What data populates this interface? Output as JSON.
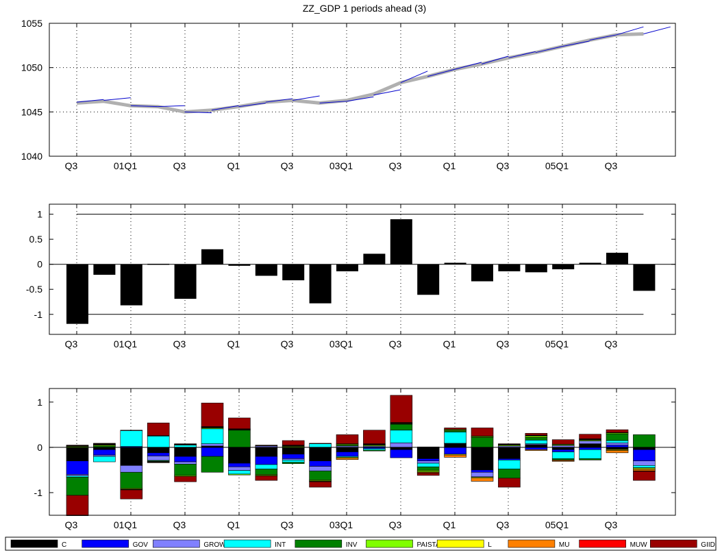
{
  "title": "ZZ_GDP 1 periods ahead (3)",
  "x_tick_labels": [
    "Q3",
    "01Q1",
    "Q3",
    "Q1",
    "Q3",
    "03Q1",
    "Q3",
    "Q1",
    "Q3",
    "05Q1",
    "Q3"
  ],
  "chart_data": [
    {
      "type": "line",
      "title": "ZZ_GDP 1 periods ahead (3)",
      "ylim": [
        1040,
        1055
      ],
      "yticks": [
        1040,
        1045,
        1050,
        1055
      ],
      "grid": true,
      "n_periods": 22,
      "series": [
        {
          "color": "#b0b0b0",
          "values": [
            1046.0,
            1046.2,
            1045.7,
            1045.6,
            1045.0,
            1045.2,
            1045.6,
            1046.1,
            1046.3,
            1046.0,
            1046.3,
            1047.0,
            1048.3,
            1049.0,
            1049.8,
            1050.4,
            1051.1,
            1051.7,
            1052.4,
            1053.1,
            1053.7,
            1053.8
          ]
        }
      ],
      "forecast_segments": {
        "color": "#0000cc",
        "segments": [
          [
            1046.1,
            1046.4
          ],
          [
            1046.3,
            1046.6
          ],
          [
            1045.7,
            1045.6
          ],
          [
            1045.6,
            1045.7
          ],
          [
            1045.0,
            1044.9
          ],
          [
            1045.2,
            1045.7
          ],
          [
            1045.6,
            1046.0
          ],
          [
            1046.1,
            1046.5
          ],
          [
            1046.3,
            1046.8
          ],
          [
            1046.0,
            1046.2
          ],
          [
            1046.2,
            1046.7
          ],
          [
            1046.9,
            1047.5
          ],
          [
            1048.3,
            1049.6
          ],
          [
            1049.0,
            1049.8
          ],
          [
            1049.8,
            1050.6
          ],
          [
            1050.4,
            1051.3
          ],
          [
            1051.1,
            1051.8
          ],
          [
            1051.7,
            1052.4
          ],
          [
            1052.4,
            1053.0
          ],
          [
            1053.1,
            1053.7
          ],
          [
            1053.7,
            1054.6
          ],
          [
            1053.8,
            1054.6
          ]
        ]
      }
    },
    {
      "type": "bar",
      "ylim": [
        -1.4,
        1.2
      ],
      "yticks": [
        -1,
        -0.5,
        0,
        0.5,
        1
      ],
      "reference_lines": [
        1,
        -1
      ],
      "bar_color": "#000000",
      "values": [
        -1.19,
        -0.21,
        -0.82,
        0.01,
        -0.69,
        0.3,
        -0.03,
        -0.23,
        -0.32,
        -0.78,
        -0.14,
        0.21,
        0.9,
        -0.61,
        0.03,
        -0.34,
        -0.14,
        -0.16,
        -0.1,
        0.03,
        0.23,
        -0.53
      ]
    },
    {
      "type": "bar",
      "stacked": true,
      "ylim": [
        -1.5,
        1.3
      ],
      "yticks": [
        -1,
        0,
        1
      ],
      "series": [
        {
          "name": "C",
          "color": "#000000",
          "values": [
            -0.3,
            -0.05,
            -0.4,
            -0.12,
            -0.2,
            0.03,
            -0.35,
            -0.2,
            -0.15,
            -0.3,
            -0.1,
            0.01,
            -0.05,
            -0.25,
            0.08,
            -0.5,
            -0.25,
            0.06,
            -0.05,
            0.08,
            -0.05,
            -0.05
          ]
        },
        {
          "name": "GOV",
          "color": "#0000ff",
          "values": [
            -0.3,
            -0.12,
            0.02,
            -0.07,
            -0.12,
            -0.2,
            -0.08,
            -0.18,
            -0.1,
            -0.12,
            -0.1,
            -0.03,
            -0.18,
            -0.05,
            -0.15,
            -0.05,
            -0.03,
            -0.05,
            -0.05,
            -0.05,
            0.05,
            -0.25
          ]
        },
        {
          "name": "GROWTH",
          "color": "#8080ff",
          "values": [
            -0.03,
            -0.03,
            -0.15,
            -0.1,
            -0.05,
            0.05,
            -0.08,
            0.03,
            -0.03,
            -0.1,
            0.03,
            0.02,
            0.1,
            -0.05,
            0.01,
            -0.1,
            0.03,
            0.02,
            0.04,
            0.06,
            0.05,
            -0.1
          ]
        },
        {
          "name": "INT",
          "color": "#00ffff",
          "values": [
            -0.03,
            -0.12,
            0.35,
            0.25,
            0.05,
            0.33,
            -0.08,
            -0.1,
            -0.05,
            0.08,
            -0.02,
            -0.03,
            0.28,
            -0.08,
            0.25,
            -0.01,
            -0.2,
            0.08,
            -0.15,
            -0.2,
            0.05,
            -0.05
          ]
        },
        {
          "name": "INV",
          "color": "#008000",
          "values": [
            -0.4,
            0.03,
            -0.35,
            -0.02,
            -0.25,
            -0.35,
            0.38,
            -0.12,
            -0.03,
            -0.2,
            0.02,
            -0.02,
            0.13,
            -0.08,
            0.03,
            0.22,
            -0.2,
            0.06,
            -0.03,
            -0.03,
            0.15,
            0.28
          ]
        },
        {
          "name": "PAISTAR",
          "color": "#80ff00",
          "values": [
            0.02,
            0.02,
            -0.02,
            -0.01,
            -0.02,
            0.02,
            -0.02,
            -0.02,
            0.02,
            -0.02,
            0.02,
            0.02,
            0.01,
            -0.03,
            0.02,
            0.02,
            0.02,
            0.03,
            0.02,
            0.02,
            0.02,
            -0.02
          ]
        },
        {
          "name": "L",
          "color": "#ffff00",
          "values": [
            0.01,
            0.01,
            -0.01,
            -0.01,
            0.01,
            0.01,
            0.01,
            -0.01,
            0.01,
            -0.01,
            -0.02,
            0.01,
            0.01,
            -0.01,
            -0.02,
            -0.02,
            0.01,
            0.01,
            -0.01,
            0.01,
            -0.02,
            -0.02
          ]
        },
        {
          "name": "MU",
          "color": "#ff8000",
          "values": [
            0.01,
            0.01,
            -0.01,
            -0.01,
            0.01,
            0.01,
            0.01,
            0.01,
            0.01,
            -0.01,
            -0.03,
            0.01,
            0.01,
            -0.02,
            -0.05,
            -0.07,
            0.01,
            -0.02,
            -0.02,
            0.01,
            -0.05,
            -0.03
          ]
        },
        {
          "name": "MUW",
          "color": "#ff0000",
          "values": [
            0.01,
            0.01,
            0.01,
            0.01,
            0.01,
            0.01,
            0.01,
            0.01,
            0.01,
            0.01,
            0.01,
            0.01,
            0.01,
            0.01,
            0.01,
            0.01,
            0.01,
            0.01,
            0.01,
            0.01,
            0.01,
            -0.01
          ]
        },
        {
          "name": "GIID",
          "color": "#990000",
          "values": [
            -0.45,
            0.01,
            -0.2,
            0.28,
            -0.12,
            0.52,
            0.24,
            -0.1,
            0.1,
            -0.12,
            0.2,
            0.3,
            0.6,
            -0.05,
            0.03,
            0.18,
            -0.2,
            0.04,
            0.1,
            0.1,
            0.06,
            -0.2
          ]
        }
      ]
    }
  ]
}
